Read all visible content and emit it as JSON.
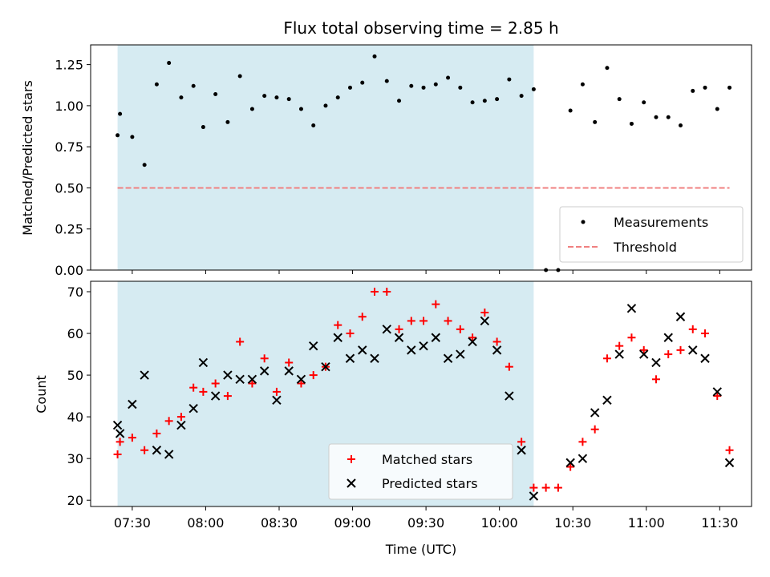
{
  "chart_data": [
    {
      "type": "scatter",
      "panel": "top",
      "title": "Flux total observing time = 2.85 h",
      "xlabel": "",
      "ylabel": "Matched/Predicted stars",
      "xlim": [
        "07:13",
        "11:43"
      ],
      "ylim": [
        0,
        1.37
      ],
      "yticks": [
        0,
        0.25,
        0.5,
        0.75,
        1.0,
        1.25
      ],
      "ytick_labels": [
        "0.00",
        "0.25",
        "0.50",
        "0.75",
        "1.00",
        "1.25"
      ],
      "shaded_interval": [
        "07:24",
        "10:14"
      ],
      "shade_color": "#add8e6",
      "series": [
        {
          "name": "Measurements",
          "kind": "points",
          "color": "#000000",
          "points": [
            [
              "07:24",
              0.82
            ],
            [
              "07:25",
              0.95
            ],
            [
              "07:30",
              0.81
            ],
            [
              "07:35",
              0.64
            ],
            [
              "07:40",
              1.13
            ],
            [
              "07:45",
              1.26
            ],
            [
              "07:50",
              1.05
            ],
            [
              "07:55",
              1.12
            ],
            [
              "07:59",
              0.87
            ],
            [
              "08:04",
              1.07
            ],
            [
              "08:09",
              0.9
            ],
            [
              "08:14",
              1.18
            ],
            [
              "08:19",
              0.98
            ],
            [
              "08:24",
              1.06
            ],
            [
              "08:29",
              1.05
            ],
            [
              "08:34",
              1.04
            ],
            [
              "08:39",
              0.98
            ],
            [
              "08:44",
              0.88
            ],
            [
              "08:49",
              1.0
            ],
            [
              "08:54",
              1.05
            ],
            [
              "08:59",
              1.11
            ],
            [
              "09:04",
              1.14
            ],
            [
              "09:09",
              1.3
            ],
            [
              "09:14",
              1.15
            ],
            [
              "09:19",
              1.03
            ],
            [
              "09:24",
              1.12
            ],
            [
              "09:29",
              1.11
            ],
            [
              "09:34",
              1.13
            ],
            [
              "09:39",
              1.17
            ],
            [
              "09:44",
              1.11
            ],
            [
              "09:49",
              1.02
            ],
            [
              "09:54",
              1.03
            ],
            [
              "09:59",
              1.04
            ],
            [
              "10:04",
              1.16
            ],
            [
              "10:09",
              1.06
            ],
            [
              "10:14",
              1.1
            ],
            [
              "10:19",
              0.0
            ],
            [
              "10:24",
              0.0
            ],
            [
              "10:29",
              0.97
            ],
            [
              "10:34",
              1.13
            ],
            [
              "10:39",
              0.9
            ],
            [
              "10:44",
              1.23
            ],
            [
              "10:49",
              1.04
            ],
            [
              "10:54",
              0.89
            ],
            [
              "10:59",
              1.02
            ],
            [
              "11:04",
              0.93
            ],
            [
              "11:09",
              0.93
            ],
            [
              "11:14",
              0.88
            ],
            [
              "11:19",
              1.09
            ],
            [
              "11:24",
              1.11
            ],
            [
              "11:29",
              0.98
            ],
            [
              "11:34",
              1.11
            ]
          ]
        },
        {
          "name": "Threshold",
          "kind": "dashed-line",
          "color": "#f08080",
          "points": [
            [
              "07:24",
              0.5
            ],
            [
              "11:34",
              0.5
            ]
          ]
        }
      ],
      "legend_position": "bottom-right"
    },
    {
      "type": "scatter",
      "panel": "bottom",
      "title": "",
      "xlabel": "Time (UTC)",
      "ylabel": "Count",
      "xlim": [
        "07:13",
        "11:43"
      ],
      "ylim": [
        18.5,
        72.5
      ],
      "yticks": [
        20,
        30,
        40,
        50,
        60,
        70
      ],
      "ytick_labels": [
        "20",
        "30",
        "40",
        "50",
        "60",
        "70"
      ],
      "xticks": [
        "07:30",
        "08:00",
        "08:30",
        "09:00",
        "09:30",
        "10:00",
        "10:30",
        "11:00",
        "11:30"
      ],
      "shaded_interval": [
        "07:24",
        "10:14"
      ],
      "shade_color": "#add8e6",
      "series": [
        {
          "name": "Matched stars",
          "kind": "plus",
          "color": "#ff0000",
          "points": [
            [
              "07:24",
              31
            ],
            [
              "07:25",
              34
            ],
            [
              "07:30",
              35
            ],
            [
              "07:35",
              32
            ],
            [
              "07:40",
              36
            ],
            [
              "07:45",
              39
            ],
            [
              "07:50",
              40
            ],
            [
              "07:55",
              47
            ],
            [
              "07:59",
              46
            ],
            [
              "08:04",
              48
            ],
            [
              "08:09",
              45
            ],
            [
              "08:14",
              58
            ],
            [
              "08:19",
              48
            ],
            [
              "08:24",
              54
            ],
            [
              "08:29",
              46
            ],
            [
              "08:34",
              53
            ],
            [
              "08:39",
              48
            ],
            [
              "08:44",
              50
            ],
            [
              "08:49",
              52
            ],
            [
              "08:54",
              62
            ],
            [
              "08:59",
              60
            ],
            [
              "09:04",
              64
            ],
            [
              "09:09",
              70
            ],
            [
              "09:14",
              70
            ],
            [
              "09:19",
              61
            ],
            [
              "09:24",
              63
            ],
            [
              "09:29",
              63
            ],
            [
              "09:34",
              67
            ],
            [
              "09:39",
              63
            ],
            [
              "09:44",
              61
            ],
            [
              "09:49",
              59
            ],
            [
              "09:54",
              65
            ],
            [
              "09:59",
              58
            ],
            [
              "10:04",
              52
            ],
            [
              "10:09",
              34
            ],
            [
              "10:14",
              23
            ],
            [
              "10:19",
              23
            ],
            [
              "10:24",
              23
            ],
            [
              "10:29",
              28
            ],
            [
              "10:34",
              34
            ],
            [
              "10:39",
              37
            ],
            [
              "10:44",
              54
            ],
            [
              "10:49",
              57
            ],
            [
              "10:54",
              59
            ],
            [
              "10:59",
              56
            ],
            [
              "11:04",
              49
            ],
            [
              "11:09",
              55
            ],
            [
              "11:14",
              56
            ],
            [
              "11:19",
              61
            ],
            [
              "11:24",
              60
            ],
            [
              "11:29",
              45
            ],
            [
              "11:34",
              32
            ]
          ]
        },
        {
          "name": "Predicted stars",
          "kind": "cross",
          "color": "#000000",
          "points": [
            [
              "07:24",
              38
            ],
            [
              "07:25",
              36
            ],
            [
              "07:30",
              43
            ],
            [
              "07:35",
              50
            ],
            [
              "07:40",
              32
            ],
            [
              "07:45",
              31
            ],
            [
              "07:50",
              38
            ],
            [
              "07:55",
              42
            ],
            [
              "07:59",
              53
            ],
            [
              "08:04",
              45
            ],
            [
              "08:09",
              50
            ],
            [
              "08:14",
              49
            ],
            [
              "08:19",
              49
            ],
            [
              "08:24",
              51
            ],
            [
              "08:29",
              44
            ],
            [
              "08:34",
              51
            ],
            [
              "08:39",
              49
            ],
            [
              "08:44",
              57
            ],
            [
              "08:49",
              52
            ],
            [
              "08:54",
              59
            ],
            [
              "08:59",
              54
            ],
            [
              "09:04",
              56
            ],
            [
              "09:09",
              54
            ],
            [
              "09:14",
              61
            ],
            [
              "09:19",
              59
            ],
            [
              "09:24",
              56
            ],
            [
              "09:29",
              57
            ],
            [
              "09:34",
              59
            ],
            [
              "09:39",
              54
            ],
            [
              "09:44",
              55
            ],
            [
              "09:49",
              58
            ],
            [
              "09:54",
              63
            ],
            [
              "09:59",
              56
            ],
            [
              "10:04",
              45
            ],
            [
              "10:09",
              32
            ],
            [
              "10:14",
              21
            ],
            [
              "10:29",
              29
            ],
            [
              "10:34",
              30
            ],
            [
              "10:39",
              41
            ],
            [
              "10:44",
              44
            ],
            [
              "10:49",
              55
            ],
            [
              "10:54",
              66
            ],
            [
              "10:59",
              55
            ],
            [
              "11:04",
              53
            ],
            [
              "11:09",
              59
            ],
            [
              "11:14",
              64
            ],
            [
              "11:19",
              56
            ],
            [
              "11:24",
              54
            ],
            [
              "11:29",
              46
            ],
            [
              "11:34",
              29
            ]
          ]
        }
      ],
      "legend_position": "bottom-center"
    }
  ]
}
